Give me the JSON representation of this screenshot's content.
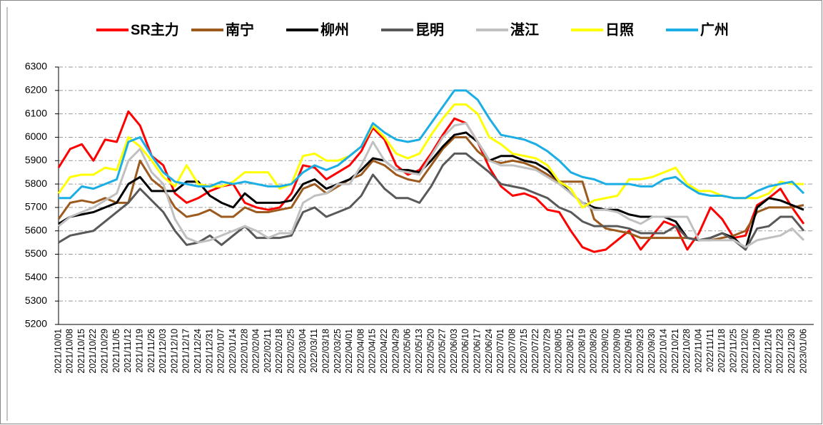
{
  "chart_data": {
    "type": "line",
    "categories": [
      "2021/10/01",
      "2021/10/08",
      "2021/10/15",
      "2021/10/22",
      "2021/10/29",
      "2021/11/05",
      "2021/11/12",
      "2021/11/19",
      "2021/11/26",
      "2021/12/03",
      "2021/12/10",
      "2021/12/17",
      "2021/12/24",
      "2021/12/31",
      "2022/01/07",
      "2022/01/14",
      "2022/01/28",
      "2022/02/04",
      "2022/02/11",
      "2022/02/18",
      "2022/02/25",
      "2022/03/04",
      "2022/03/11",
      "2022/03/18",
      "2022/03/25",
      "2022/04/01",
      "2022/04/08",
      "2022/04/15",
      "2022/04/22",
      "2022/04/29",
      "2022/05/06",
      "2022/05/13",
      "2022/05/20",
      "2022/05/27",
      "2022/06/03",
      "2022/06/10",
      "2022/06/17",
      "2022/06/24",
      "2022/07/01",
      "2022/07/08",
      "2022/07/15",
      "2022/07/22",
      "2022/07/29",
      "2022/08/05",
      "2022/08/12",
      "2022/08/19",
      "2022/08/26",
      "2022/09/02",
      "2022/09/09",
      "2022/09/16",
      "2022/09/23",
      "2022/09/30",
      "2022/10/14",
      "2022/10/21",
      "2022/10/28",
      "2022/11/04",
      "2022/11/11",
      "2022/11/18",
      "2022/11/25",
      "2022/12/02",
      "2022/12/09",
      "2022/12/16",
      "2022/12/23",
      "2022/12/30",
      "2023/01/06"
    ],
    "series": [
      {
        "name": "SR主力",
        "color": "#ff0000",
        "values": [
          5870,
          5950,
          5970,
          5900,
          5990,
          5980,
          6110,
          6050,
          5920,
          5880,
          5760,
          5720,
          5740,
          5770,
          5790,
          5800,
          5720,
          5700,
          5690,
          5700,
          5760,
          5880,
          5870,
          5820,
          5850,
          5880,
          5940,
          6040,
          5990,
          5880,
          5840,
          5860,
          5930,
          6010,
          6080,
          6060,
          5980,
          5870,
          5790,
          5750,
          5760,
          5740,
          5690,
          5680,
          5600,
          5530,
          5510,
          5520,
          5560,
          5600,
          5520,
          5580,
          5640,
          5620,
          5520,
          5590,
          5700,
          5650,
          5570,
          5580,
          5710,
          5740,
          5780,
          5700,
          5630
        ]
      },
      {
        "name": "南宁",
        "color": "#9c5a1e",
        "values": [
          5650,
          5720,
          5730,
          5720,
          5740,
          5720,
          5720,
          5900,
          5820,
          5780,
          5700,
          5660,
          5670,
          5690,
          5660,
          5660,
          5700,
          5680,
          5680,
          5690,
          5700,
          5780,
          5800,
          5760,
          5790,
          5820,
          5840,
          5900,
          5880,
          5840,
          5820,
          5810,
          5880,
          5950,
          6000,
          6000,
          5940,
          5900,
          5890,
          5900,
          5890,
          5870,
          5840,
          5810,
          5810,
          5810,
          5650,
          5610,
          5600,
          5590,
          5570,
          5570,
          5570,
          5570,
          5570,
          5560,
          5560,
          5570,
          5580,
          5600,
          5680,
          5700,
          5700,
          5700,
          5710
        ]
      },
      {
        "name": "柳州",
        "color": "#000000",
        "values": [
          5630,
          5660,
          5670,
          5680,
          5700,
          5720,
          5800,
          5830,
          5770,
          5770,
          5770,
          5810,
          5810,
          5750,
          5720,
          5700,
          5760,
          5720,
          5720,
          5720,
          5730,
          5800,
          5820,
          5780,
          5800,
          5820,
          5860,
          5910,
          5900,
          5860,
          5860,
          5850,
          5900,
          5960,
          6010,
          6020,
          5980,
          5900,
          5920,
          5920,
          5900,
          5890,
          5860,
          5810,
          5760,
          5720,
          5700,
          5690,
          5690,
          5670,
          5660,
          5660,
          5660,
          5640,
          5570,
          5560,
          5570,
          5590,
          5570,
          5520,
          5700,
          5740,
          5730,
          5710,
          5690
        ]
      },
      {
        "name": "昆明",
        "color": "#595959",
        "values": [
          5550,
          5580,
          5590,
          5600,
          5640,
          5680,
          5720,
          5780,
          5730,
          5680,
          5600,
          5540,
          5550,
          5580,
          5540,
          5580,
          5620,
          5570,
          5570,
          5570,
          5580,
          5680,
          5700,
          5660,
          5680,
          5700,
          5750,
          5840,
          5780,
          5740,
          5740,
          5720,
          5790,
          5880,
          5930,
          5930,
          5890,
          5850,
          5800,
          5790,
          5780,
          5760,
          5740,
          5700,
          5680,
          5640,
          5620,
          5620,
          5620,
          5610,
          5590,
          5590,
          5590,
          5620,
          5570,
          5560,
          5570,
          5590,
          5560,
          5520,
          5610,
          5620,
          5660,
          5660,
          5600
        ]
      },
      {
        "name": "湛江",
        "color": "#c0c0c0",
        "values": [
          5620,
          5660,
          5680,
          5700,
          5730,
          5760,
          5900,
          5950,
          5850,
          5800,
          5650,
          5570,
          5550,
          5560,
          5580,
          5600,
          5620,
          5600,
          5570,
          5590,
          5590,
          5720,
          5750,
          5760,
          5800,
          5800,
          5880,
          5980,
          5900,
          5860,
          5850,
          5840,
          5920,
          6000,
          6050,
          6060,
          5980,
          5900,
          5880,
          5880,
          5870,
          5860,
          5830,
          5800,
          5760,
          5720,
          5690,
          5690,
          5680,
          5650,
          5630,
          5660,
          5660,
          5660,
          5660,
          5560,
          5560,
          5560,
          5560,
          5530,
          5560,
          5570,
          5580,
          5610,
          5560
        ]
      },
      {
        "name": "日照",
        "color": "#ffff00",
        "values": [
          5760,
          5830,
          5840,
          5840,
          5870,
          5860,
          6000,
          5960,
          5900,
          5830,
          5790,
          5880,
          5800,
          5790,
          5790,
          5810,
          5850,
          5850,
          5850,
          5780,
          5800,
          5920,
          5930,
          5900,
          5900,
          5920,
          5960,
          6050,
          6000,
          5930,
          5910,
          5930,
          6010,
          6080,
          6140,
          6140,
          6100,
          6000,
          5970,
          5930,
          5920,
          5910,
          5880,
          5810,
          5780,
          5700,
          5730,
          5740,
          5750,
          5820,
          5820,
          5830,
          5850,
          5870,
          5800,
          5770,
          5770,
          5750,
          5740,
          5740,
          5740,
          5760,
          5810,
          5800,
          5800
        ]
      },
      {
        "name": "广州",
        "color": "#1aaee5",
        "values": [
          5740,
          5740,
          5790,
          5780,
          5800,
          5820,
          5980,
          6000,
          5920,
          5850,
          5810,
          5800,
          5790,
          5790,
          5810,
          5800,
          5810,
          5800,
          5790,
          5790,
          5800,
          5850,
          5880,
          5860,
          5880,
          5920,
          5960,
          6060,
          6020,
          5990,
          5980,
          5990,
          6060,
          6130,
          6200,
          6200,
          6160,
          6080,
          6010,
          6000,
          5990,
          5970,
          5940,
          5900,
          5850,
          5830,
          5820,
          5800,
          5800,
          5800,
          5790,
          5790,
          5820,
          5830,
          5790,
          5760,
          5750,
          5750,
          5740,
          5740,
          5770,
          5790,
          5800,
          5810,
          5760
        ]
      }
    ],
    "ylim": [
      5200,
      6300
    ],
    "yticks": [
      5200,
      5300,
      5400,
      5500,
      5600,
      5700,
      5800,
      5900,
      6000,
      6100,
      6200,
      6300
    ],
    "grid": true,
    "legend": "top"
  }
}
